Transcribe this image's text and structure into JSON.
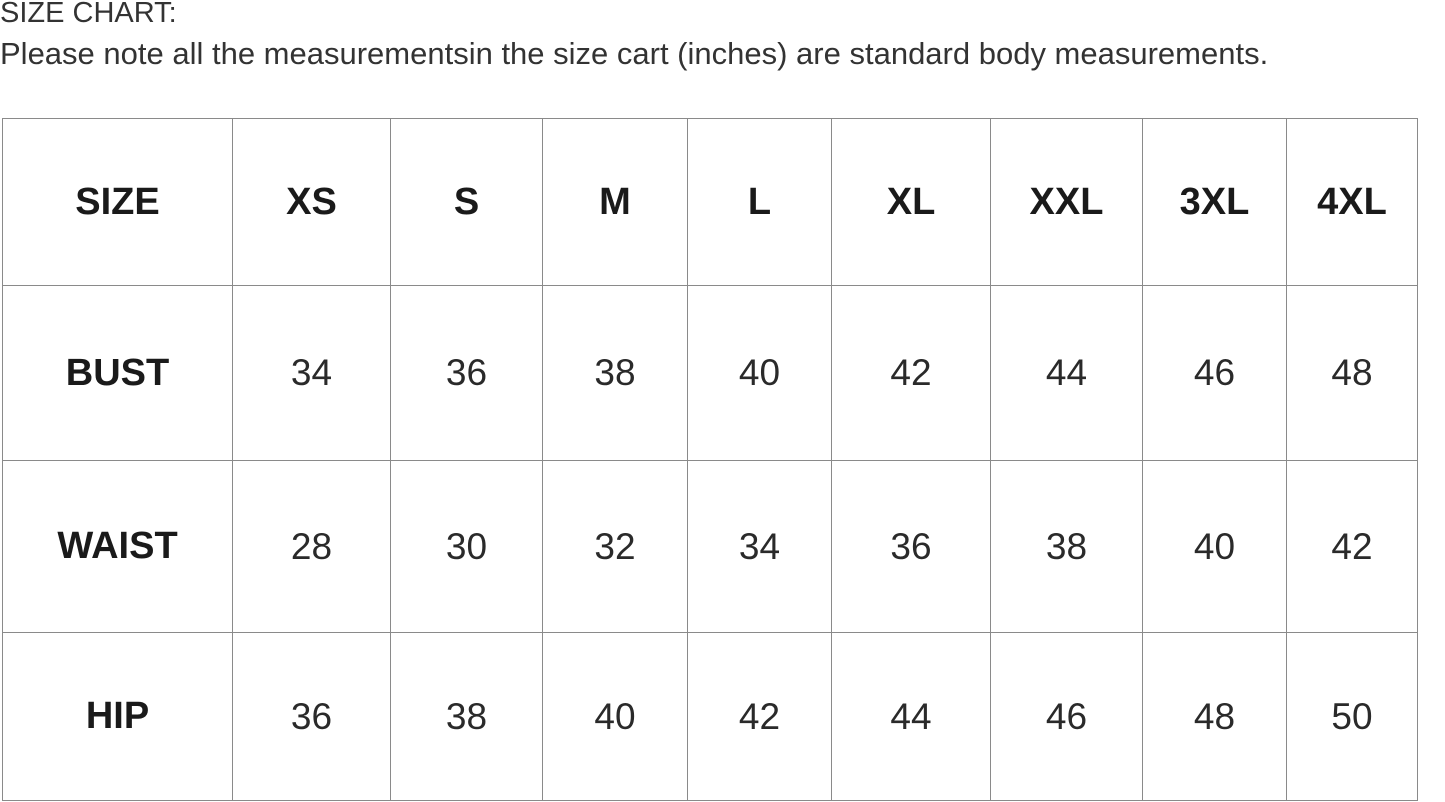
{
  "title": "SIZE CHART:",
  "note": "Please note all the measurementsin the size cart (inches) are standard body measurements.",
  "table": {
    "header": [
      "SIZE",
      "XS",
      "S",
      "M",
      "L",
      "XL",
      "XXL",
      "3XL",
      "4XL"
    ],
    "rows": [
      {
        "label": "BUST",
        "values": [
          "34",
          "36",
          "38",
          "40",
          "42",
          "44",
          "46",
          "48"
        ]
      },
      {
        "label": "WAIST",
        "values": [
          "28",
          "30",
          "32",
          "34",
          "36",
          "38",
          "40",
          "42"
        ]
      },
      {
        "label": "HIP",
        "values": [
          "36",
          "38",
          "40",
          "42",
          "44",
          "46",
          "48",
          "50"
        ]
      }
    ]
  }
}
